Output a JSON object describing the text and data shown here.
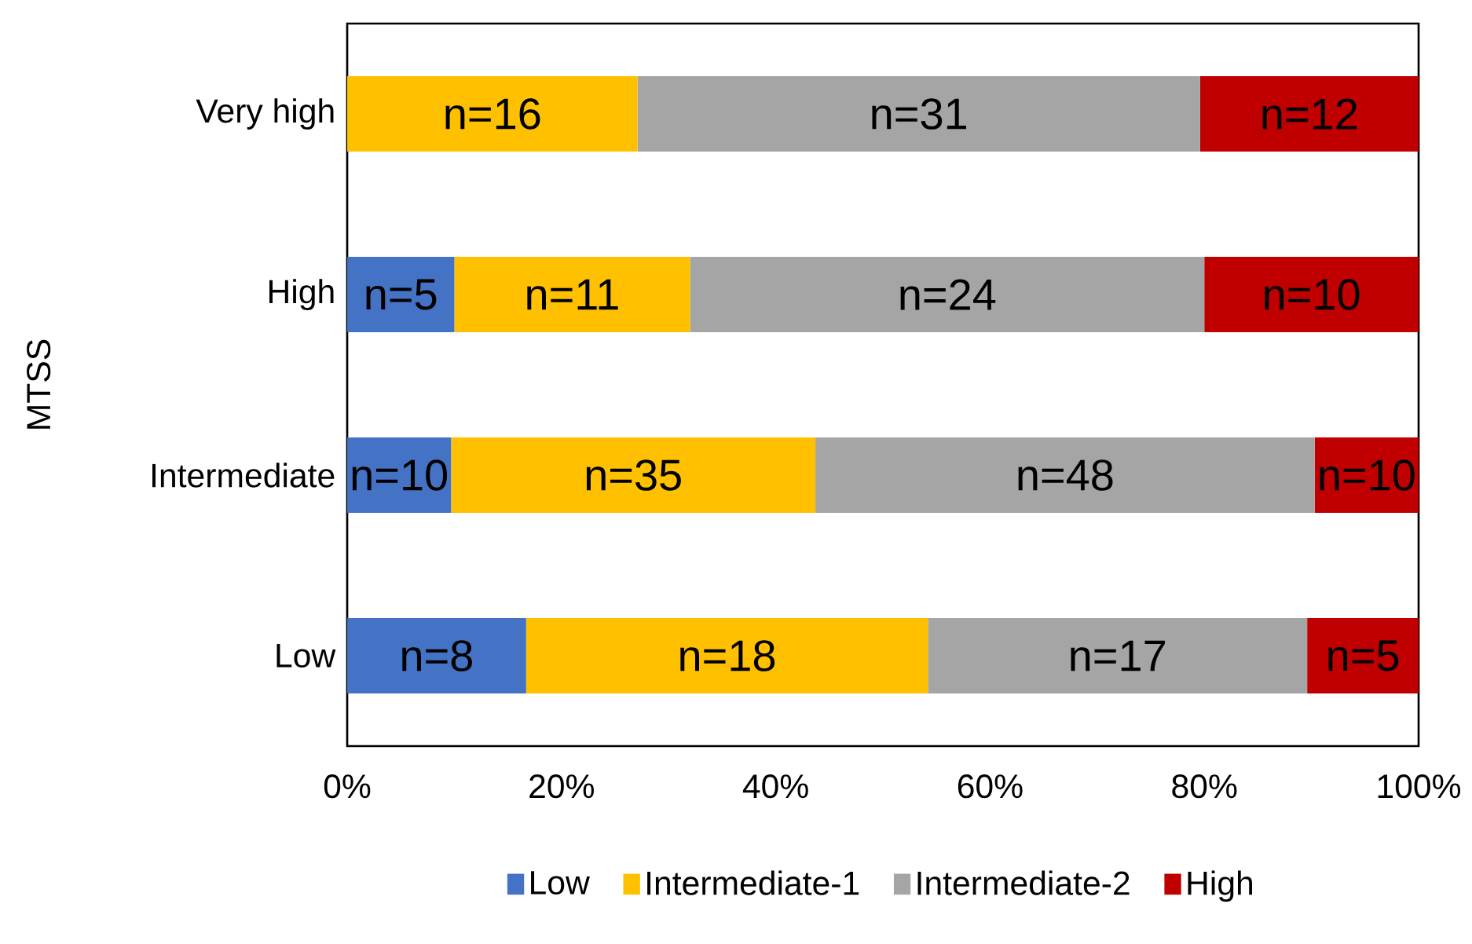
{
  "chart_data": {
    "type": "bar",
    "orientation": "horizontal",
    "stacked": true,
    "ylabel": "MTSS",
    "categories": [
      "Very high",
      "High",
      "Intermediate",
      "Low"
    ],
    "xlim": [
      0,
      100
    ],
    "xticks": [
      {
        "value": 0,
        "label": "0%"
      },
      {
        "value": 20,
        "label": "20%"
      },
      {
        "value": 40,
        "label": "40%"
      },
      {
        "value": 60,
        "label": "60%"
      },
      {
        "value": 80,
        "label": "80%"
      },
      {
        "value": 100,
        "label": "100%"
      }
    ],
    "legend": "bottom",
    "grid": false,
    "series": [
      {
        "name": "Low",
        "color": "#4472c4",
        "values": [
          0,
          10,
          9.7,
          16.7
        ]
      },
      {
        "name": "Intermediate-1",
        "color": "#ffc000",
        "values": [
          27.1,
          22,
          34.0,
          37.5
        ]
      },
      {
        "name": "Intermediate-2",
        "color": "#a5a5a5",
        "values": [
          52.5,
          48,
          46.6,
          35.4
        ]
      },
      {
        "name": "High",
        "color": "#c00000",
        "values": [
          20.4,
          20,
          9.7,
          10.4
        ]
      }
    ],
    "annotations": [
      "n=16",
      "n=31",
      "n=12",
      "n=5",
      "n=11",
      "n=24",
      "n=10",
      "n=10",
      "n=35",
      "n=48",
      "n=10",
      "n=8",
      "n=18",
      "n=17",
      "n=5"
    ]
  }
}
